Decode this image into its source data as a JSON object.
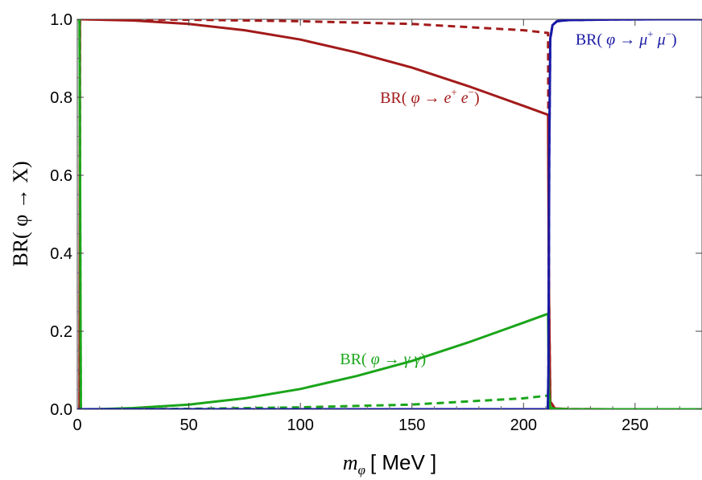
{
  "chart_data": {
    "type": "line",
    "xlabel": "m_φ [ MeV ]",
    "xlabel_parts": {
      "symbol": "m",
      "subscript": "φ",
      "unit": "[ MeV ]"
    },
    "ylabel": "BR( φ → X)",
    "xlim": [
      0,
      280
    ],
    "ylim": [
      0,
      1
    ],
    "xticks": [
      "0",
      "50",
      "100",
      "150",
      "200",
      "250"
    ],
    "yticks": [
      "0.0",
      "0.2",
      "0.4",
      "0.6",
      "0.8",
      "1.0"
    ],
    "x_tick_values": [
      0,
      50,
      100,
      150,
      200,
      250
    ],
    "y_tick_values": [
      0,
      0.2,
      0.4,
      0.6,
      0.8,
      1.0
    ],
    "grid": false,
    "series": [
      {
        "name": "BR( φ → e+ e−)",
        "color": "#a31a1a",
        "style": "solid",
        "x": [
          0,
          1.02,
          1.2,
          2,
          10,
          25,
          50,
          75,
          100,
          125,
          150,
          175,
          200,
          211,
          211.4,
          212,
          214,
          220,
          240,
          260,
          280
        ],
        "y": [
          0,
          0,
          1.0,
          1.0,
          0.999,
          0.997,
          0.988,
          0.972,
          0.948,
          0.915,
          0.876,
          0.829,
          0.778,
          0.755,
          0.3,
          0.02,
          0.002,
          0.0005,
          0,
          0,
          0
        ]
      },
      {
        "name": "BR( φ → e+ e−) dashed",
        "color": "#a31a1a",
        "style": "dashed",
        "x": [
          0,
          1.02,
          1.2,
          2,
          50,
          100,
          150,
          200,
          211,
          211.4,
          212,
          214,
          220,
          240,
          260,
          280
        ],
        "y": [
          0,
          0,
          1.0,
          1.0,
          0.999,
          0.995,
          0.988,
          0.972,
          0.965,
          0.3,
          0.02,
          0.002,
          0.0005,
          0,
          0,
          0
        ]
      },
      {
        "name": "BR( φ → γ γ)",
        "color": "#1aa51a",
        "style": "solid",
        "x": [
          0,
          1.02,
          1.6,
          2,
          10,
          25,
          50,
          75,
          100,
          125,
          150,
          175,
          200,
          211,
          211.4,
          212,
          214,
          220,
          240,
          260,
          280
        ],
        "y": [
          1.0,
          1.0,
          0,
          0,
          0.0005,
          0.003,
          0.012,
          0.028,
          0.052,
          0.085,
          0.124,
          0.171,
          0.222,
          0.245,
          0.05,
          0.005,
          0.001,
          0.0003,
          0,
          0,
          0
        ]
      },
      {
        "name": "BR( φ → γ γ) dashed",
        "color": "#1aa51a",
        "style": "dashed",
        "x": [
          0,
          1.02,
          1.6,
          2,
          50,
          100,
          150,
          200,
          211,
          211.4,
          212,
          214,
          220,
          240,
          260,
          280
        ],
        "y": [
          1.0,
          1.0,
          0,
          0,
          0.001,
          0.005,
          0.012,
          0.028,
          0.035,
          0.01,
          0.002,
          0.0005,
          0,
          0,
          0,
          0
        ]
      },
      {
        "name": "BR( φ → μ+ μ−)",
        "color": "#1a1aa5",
        "style": "solid",
        "x": [
          0,
          210.9,
          211.2,
          211.5,
          212,
          213,
          215,
          220,
          240,
          260,
          280
        ],
        "y": [
          0,
          0,
          0.1,
          0.65,
          0.95,
          0.985,
          0.995,
          0.998,
          0.9995,
          1.0,
          1.0
        ]
      },
      {
        "name": "BR( φ → μ+ μ−) dashed",
        "color": "#1a1aa5",
        "style": "dashed",
        "x": [
          0,
          210.9,
          211.2,
          211.5,
          212,
          213,
          215,
          220,
          240,
          260,
          280
        ],
        "y": [
          0,
          0,
          0.1,
          0.65,
          0.95,
          0.985,
          0.995,
          0.998,
          0.9995,
          1.0,
          1.0
        ]
      }
    ],
    "annotations": [
      {
        "color": "#a31a1a",
        "parts": {
          "pre": "BR( ",
          "phi": "φ",
          "arrow": " → ",
          "p1": "e",
          "s1": "+",
          "p2": " e",
          "s2": "−",
          "post": ")"
        },
        "x": 158,
        "y": 0.8
      },
      {
        "color": "#1aa51a",
        "parts": {
          "pre": "BR( ",
          "phi": "φ",
          "arrow": " → ",
          "p1": "γ",
          "s1": "",
          "p2": " γ",
          "s2": "",
          "post": ")"
        },
        "x": 137,
        "y": 0.13
      },
      {
        "color": "#1a1aa5",
        "parts": {
          "pre": "BR( ",
          "phi": "φ",
          "arrow": " → ",
          "p1": "μ",
          "s1": "+",
          "p2": " μ",
          "s2": "−",
          "post": ")"
        },
        "x": 246,
        "y": 0.95
      }
    ]
  }
}
